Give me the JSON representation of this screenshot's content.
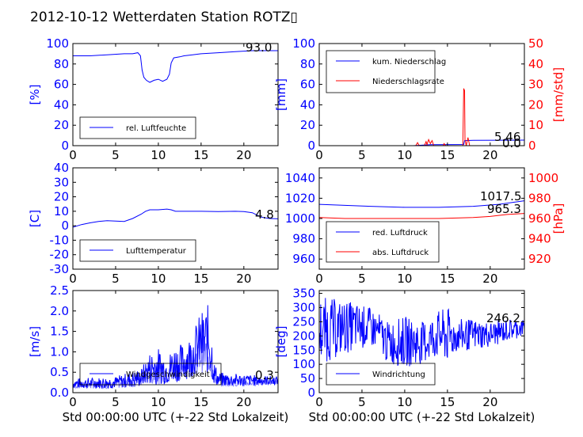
{
  "title": "2012-10-12 Wetterdaten Station ROTZ▯",
  "colors": {
    "blue": "#0000ff",
    "red": "#ff0000",
    "light": "#8080ff",
    "black": "#000000"
  },
  "chart_data": [
    {
      "id": "humidity",
      "type": "line",
      "ylabel": "[%]",
      "xlim": [
        0,
        24
      ],
      "ylim": [
        0,
        100
      ],
      "xticks": [
        0,
        5,
        10,
        15,
        20
      ],
      "yticks": [
        0,
        20,
        40,
        60,
        80,
        100
      ],
      "series": [
        {
          "name": "rel. Luftfeuchte",
          "color": "#0000ff",
          "points": [
            [
              0,
              88
            ],
            [
              2,
              88
            ],
            [
              4,
              89
            ],
            [
              6,
              90
            ],
            [
              7,
              90
            ],
            [
              7.6,
              91
            ],
            [
              7.9,
              88
            ],
            [
              8.1,
              74
            ],
            [
              8.3,
              67
            ],
            [
              8.6,
              64
            ],
            [
              9,
              62
            ],
            [
              9.5,
              64
            ],
            [
              10,
              65
            ],
            [
              10.5,
              63
            ],
            [
              11,
              65
            ],
            [
              11.3,
              70
            ],
            [
              11.5,
              81
            ],
            [
              11.8,
              86
            ],
            [
              12.5,
              87
            ],
            [
              13,
              88
            ],
            [
              14,
              89
            ],
            [
              15,
              90
            ],
            [
              17,
              91
            ],
            [
              19,
              92
            ],
            [
              21,
              93
            ],
            [
              24,
              93
            ]
          ]
        }
      ],
      "last_value": "93.0",
      "legend": {
        "position": "lower-left"
      }
    },
    {
      "id": "rain",
      "type": "line",
      "ylabel": "[mm]",
      "ylabel_right": "[mm/std]",
      "xlim": [
        0,
        24
      ],
      "ylim": [
        0,
        100
      ],
      "ylim_right": [
        0,
        50
      ],
      "xticks": [
        0,
        5,
        10,
        15,
        20
      ],
      "yticks": [
        0,
        20,
        40,
        60,
        80,
        100
      ],
      "yticks_right": [
        0,
        10,
        20,
        30,
        40,
        50
      ],
      "series": [
        {
          "name": "kum. Niederschlag",
          "color": "#0000ff",
          "axis": "left",
          "points": [
            [
              0,
              0
            ],
            [
              11,
              0
            ],
            [
              12,
              0.5
            ],
            [
              13,
              1
            ],
            [
              16.9,
              1.2
            ],
            [
              17,
              5
            ],
            [
              18,
              5.3
            ],
            [
              24,
              5.46
            ]
          ]
        },
        {
          "name": "Niederschlagsrate",
          "color": "#ff0000",
          "axis": "right",
          "points": [
            [
              0,
              0
            ],
            [
              11.3,
              0
            ],
            [
              11.5,
              1.5
            ],
            [
              11.7,
              0
            ],
            [
              12.3,
              0
            ],
            [
              12.5,
              2
            ],
            [
              12.6,
              0.5
            ],
            [
              12.8,
              3
            ],
            [
              13,
              1
            ],
            [
              13.2,
              2.5
            ],
            [
              13.4,
              0
            ],
            [
              14.5,
              0
            ],
            [
              14.6,
              1
            ],
            [
              14.8,
              0
            ],
            [
              16.8,
              0
            ],
            [
              16.9,
              28
            ],
            [
              17.0,
              27
            ],
            [
              17.05,
              3
            ],
            [
              17.2,
              0
            ],
            [
              17.4,
              4
            ],
            [
              17.6,
              0
            ],
            [
              24,
              0
            ]
          ]
        }
      ],
      "last_value": "5.46",
      "last_value_right": "0.0",
      "legend": {
        "position": "upper-left"
      }
    },
    {
      "id": "temperature",
      "type": "line",
      "ylabel": "[C]",
      "xlim": [
        0,
        24
      ],
      "ylim": [
        -30,
        40
      ],
      "xticks": [
        0,
        5,
        10,
        15,
        20
      ],
      "yticks": [
        -30,
        -20,
        -10,
        0,
        10,
        20,
        30,
        40
      ],
      "series": [
        {
          "name": "Lufttemperatur",
          "color": "#0000ff",
          "points": [
            [
              0,
              -1
            ],
            [
              1,
              0.8
            ],
            [
              2,
              2
            ],
            [
              3,
              3
            ],
            [
              4,
              3.5
            ],
            [
              5,
              3.2
            ],
            [
              6,
              3
            ],
            [
              7,
              5
            ],
            [
              8,
              8
            ],
            [
              8.5,
              10
            ],
            [
              9,
              11
            ],
            [
              10,
              11
            ],
            [
              11,
              11.5
            ],
            [
              11.5,
              11
            ],
            [
              12,
              10
            ],
            [
              13,
              10
            ],
            [
              15,
              10
            ],
            [
              17,
              9.8
            ],
            [
              19,
              10
            ],
            [
              20,
              9.8
            ],
            [
              21,
              9
            ],
            [
              22,
              6
            ],
            [
              23,
              5
            ],
            [
              24,
              4.8
            ]
          ]
        }
      ],
      "last_value": "4.8",
      "legend": {
        "position": "lower-left"
      }
    },
    {
      "id": "pressure",
      "type": "line",
      "xlim": [
        0,
        24
      ],
      "ylim": [
        950,
        1050
      ],
      "ylim_right": [
        910,
        1010
      ],
      "ylabel_right": "[hPa]",
      "xticks": [
        0,
        5,
        10,
        15,
        20
      ],
      "yticks": [
        960,
        980,
        1000,
        1020,
        1040
      ],
      "yticks_right": [
        920,
        940,
        960,
        980,
        1000
      ],
      "series": [
        {
          "name": "red. Luftdruck",
          "color": "#0000ff",
          "axis": "left",
          "points": [
            [
              0,
              1014
            ],
            [
              3,
              1013
            ],
            [
              6,
              1012
            ],
            [
              10,
              1011
            ],
            [
              14,
              1011
            ],
            [
              18,
              1012
            ],
            [
              21,
              1014
            ],
            [
              24,
              1017.5
            ]
          ]
        },
        {
          "name": "abs. Luftdruck",
          "color": "#ff0000",
          "axis": "left",
          "points": [
            [
              0,
              1001
            ],
            [
              3,
              1000
            ],
            [
              6,
              1000
            ],
            [
              10,
              1000
            ],
            [
              14,
              1000
            ],
            [
              16,
              1000.5
            ],
            [
              18,
              1001
            ],
            [
              20,
              1002
            ],
            [
              22,
              1004
            ],
            [
              24,
              1005
            ]
          ]
        }
      ],
      "last_value": "1017.5",
      "last_value_right": "965.3",
      "legend": {
        "position": "lower-left"
      }
    },
    {
      "id": "wind_speed",
      "type": "line",
      "ylabel": "[m/s]",
      "xlabel": "Std 00:00:00 UTC (+-22 Std Lokalzeit)",
      "xlim": [
        0,
        24
      ],
      "ylim": [
        0,
        2.5
      ],
      "xticks": [
        0,
        5,
        10,
        15,
        20
      ],
      "yticks": [
        0.0,
        0.5,
        1.0,
        1.5,
        2.0,
        2.5
      ],
      "series": [
        {
          "name": "Windgeschwindigkeit",
          "color": "#0000ff",
          "noisy": true,
          "envelope": [
            [
              0,
              0.1,
              0.35
            ],
            [
              5,
              0.1,
              0.4
            ],
            [
              8,
              0.15,
              0.6
            ],
            [
              9,
              0.2,
              1.0
            ],
            [
              10,
              0.2,
              1.1
            ],
            [
              11,
              0.2,
              0.9
            ],
            [
              12,
              0.25,
              1.2
            ],
            [
              13,
              0.3,
              1.2
            ],
            [
              14,
              0.4,
              1.5
            ],
            [
              15,
              0.5,
              2.0
            ],
            [
              16,
              0.4,
              2.2
            ],
            [
              16.5,
              0.2,
              0.8
            ],
            [
              17,
              0.15,
              0.5
            ],
            [
              20,
              0.15,
              0.45
            ],
            [
              24,
              0.2,
              0.4
            ]
          ]
        }
      ],
      "last_value": "0.3",
      "legend": {
        "position": "lower-left"
      }
    },
    {
      "id": "wind_dir",
      "type": "line",
      "ylabel": "[deg]",
      "xlabel": "Std 00:00:00 UTC (+-22 Std Lokalzeit)",
      "xlim": [
        0,
        24
      ],
      "ylim": [
        0,
        360
      ],
      "xticks": [
        0,
        5,
        10,
        15,
        20
      ],
      "yticks": [
        0,
        50,
        100,
        150,
        200,
        250,
        300,
        350
      ],
      "series": [
        {
          "name": "Windrichtung",
          "color": "#0000ff",
          "noisy": true,
          "envelope": [
            [
              0,
              100,
              340
            ],
            [
              2,
              120,
              330
            ],
            [
              4,
              150,
              320
            ],
            [
              6,
              160,
              300
            ],
            [
              7,
              150,
              280
            ],
            [
              8,
              100,
              250
            ],
            [
              10,
              90,
              270
            ],
            [
              12,
              100,
              250
            ],
            [
              14,
              120,
              290
            ],
            [
              15,
              100,
              300
            ],
            [
              16,
              140,
              260
            ],
            [
              18,
              150,
              260
            ],
            [
              20,
              160,
              250
            ],
            [
              22,
              180,
              260
            ],
            [
              24,
              200,
              260
            ]
          ]
        }
      ],
      "last_value": "246.2",
      "legend": {
        "position": "lower-left"
      }
    }
  ]
}
